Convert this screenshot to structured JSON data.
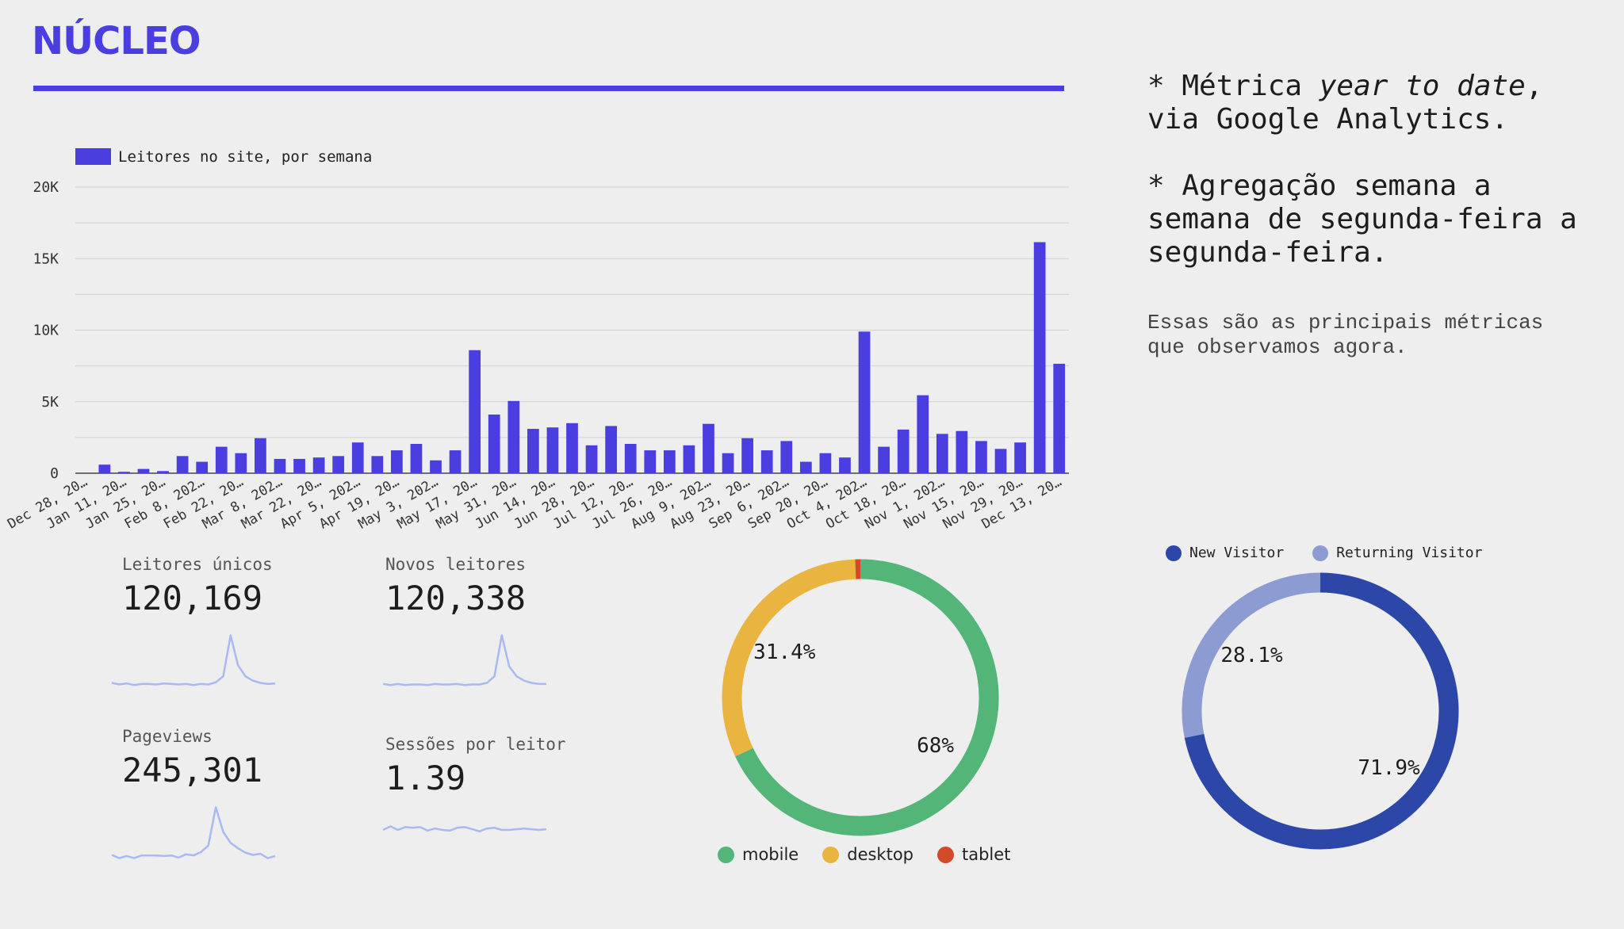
{
  "brand": {
    "logo_text": "NÚCLEO",
    "accent": "#4a3ee0"
  },
  "notes": {
    "note1_prefix": "* Métrica ",
    "note1_em": "year to date",
    "note1_suffix": ", via Google Analytics.",
    "note2": "* Agregação semana a semana de segunda-feira a segunda-feira.",
    "note3": "Essas são as principais métricas que observamos agora."
  },
  "kpis": [
    {
      "label": "Leitores únicos",
      "value": "120,169"
    },
    {
      "label": "Novos leitores",
      "value": "120,338"
    },
    {
      "label": "Pageviews",
      "value": "245,301"
    },
    {
      "label": "Sessões por leitor",
      "value": "1.39"
    }
  ],
  "chart_data": [
    {
      "type": "bar",
      "title": "",
      "legend": "Leitores no site, por semana",
      "legend_position": "top-left",
      "color": "#4a3ee0",
      "grid": true,
      "ylim": [
        0,
        20000
      ],
      "yticks": [
        0,
        5000,
        10000,
        15000,
        20000
      ],
      "ytick_labels": [
        "0",
        "5K",
        "10K",
        "15K",
        "20K"
      ],
      "x_tick_labels": [
        "Dec 28, 20…",
        "Jan 11, 20…",
        "Jan 25, 20…",
        "Feb 8, 202…",
        "Feb 22, 20…",
        "Mar 8, 202…",
        "Mar 22, 20…",
        "Apr 5, 202…",
        "Apr 19, 20…",
        "May 3, 202…",
        "May 17, 20…",
        "May 31, 20…",
        "Jun 14, 20…",
        "Jun 28, 20…",
        "Jul 12, 20…",
        "Jul 26, 20…",
        "Aug 9, 202…",
        "Aug 23, 20…",
        "Sep 6, 202…",
        "Sep 20, 20…",
        "Oct 4, 202…",
        "Oct 18, 20…",
        "Nov 1, 202…",
        "Nov 15, 20…",
        "Nov 29, 20…",
        "Dec 13, 20…"
      ],
      "values": [
        0,
        600,
        100,
        300,
        150,
        1200,
        800,
        1850,
        1400,
        2450,
        1000,
        1000,
        1100,
        1200,
        2150,
        1200,
        1600,
        2050,
        900,
        1600,
        8600,
        4100,
        5050,
        3100,
        3200,
        3500,
        1950,
        3300,
        2050,
        1600,
        1600,
        1950,
        3450,
        1400,
        2450,
        1600,
        2250,
        800,
        1400,
        1100,
        9900,
        1850,
        3050,
        5450,
        2750,
        2950,
        2250,
        1700,
        2150,
        16150,
        7650
      ]
    },
    {
      "type": "pie",
      "style": "donut",
      "categories": [
        "mobile",
        "desktop",
        "tablet"
      ],
      "values": [
        68,
        31.4,
        0.6
      ],
      "labels": [
        "68%",
        "31.4%",
        ""
      ],
      "colors": [
        "#53b578",
        "#e9b43f",
        "#d24a2a"
      ]
    },
    {
      "type": "pie",
      "style": "donut",
      "categories": [
        "New Visitor",
        "Returning Visitor"
      ],
      "values": [
        71.9,
        28.1
      ],
      "labels": [
        "71.9%",
        "28.1%"
      ],
      "colors": [
        "#2c47a8",
        "#8c9bd2"
      ]
    }
  ],
  "sparklines": {
    "color": "#a9b9f2",
    "leitores_unicos": [
      0.08,
      0.05,
      0.07,
      0.04,
      0.06,
      0.06,
      0.05,
      0.07,
      0.06,
      0.05,
      0.06,
      0.04,
      0.06,
      0.05,
      0.09,
      0.2,
      0.95,
      0.4,
      0.2,
      0.12,
      0.08,
      0.06,
      0.07
    ],
    "novos_leitores": [
      0.06,
      0.04,
      0.06,
      0.04,
      0.05,
      0.05,
      0.04,
      0.06,
      0.05,
      0.05,
      0.06,
      0.04,
      0.05,
      0.05,
      0.08,
      0.2,
      0.95,
      0.38,
      0.2,
      0.12,
      0.08,
      0.06,
      0.06
    ],
    "pageviews": [
      0.08,
      0.02,
      0.06,
      0.02,
      0.07,
      0.07,
      0.07,
      0.06,
      0.07,
      0.03,
      0.09,
      0.07,
      0.13,
      0.25,
      0.95,
      0.5,
      0.3,
      0.2,
      0.12,
      0.08,
      0.1,
      0.02,
      0.06
    ],
    "sessoes": [
      0.5,
      0.75,
      0.5,
      0.7,
      0.65,
      0.7,
      0.45,
      0.6,
      0.5,
      0.45,
      0.65,
      0.7,
      0.55,
      0.4,
      0.6,
      0.65,
      0.5,
      0.5,
      0.55,
      0.6,
      0.55,
      0.5,
      0.55
    ]
  }
}
